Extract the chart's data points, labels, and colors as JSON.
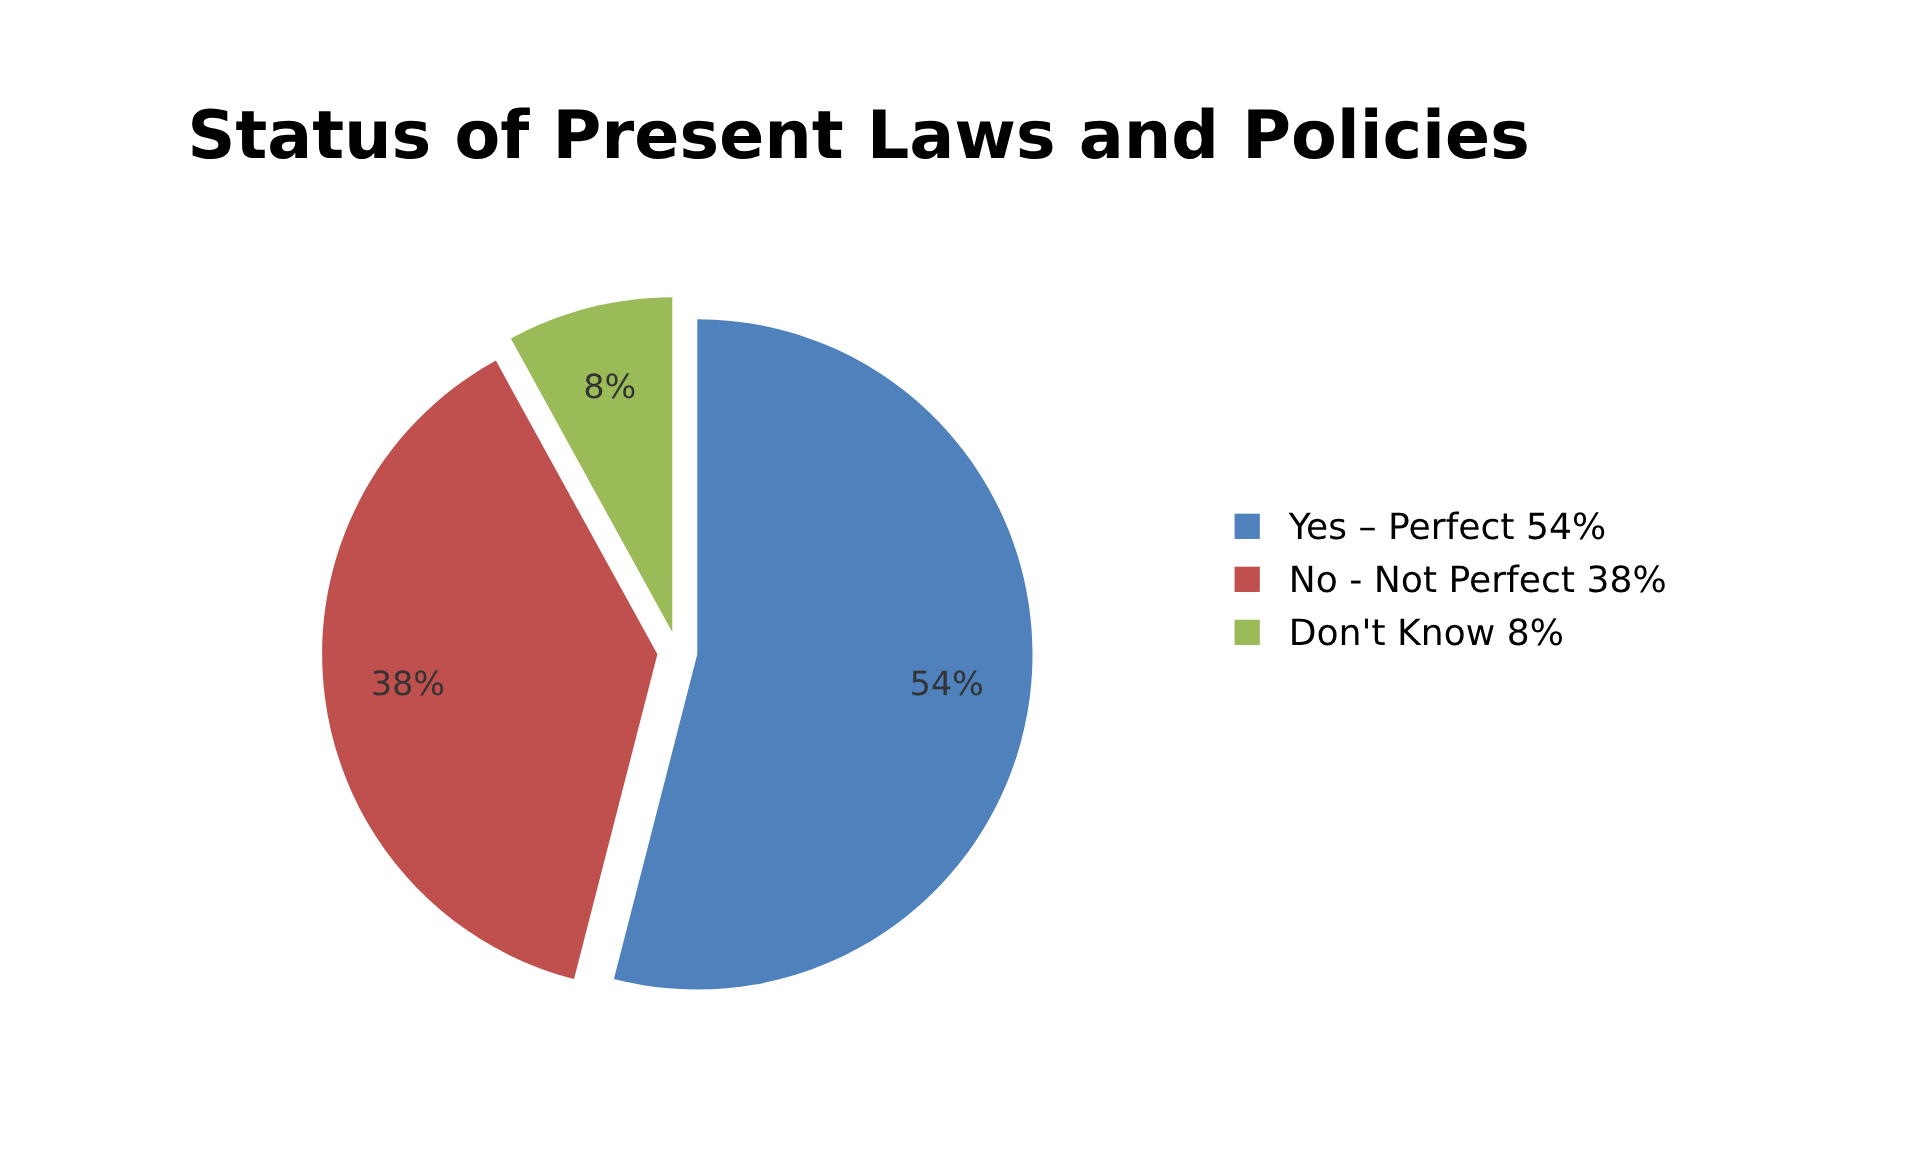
{
  "chart_data": {
    "type": "pie",
    "title": "Status of Present Laws and Policies",
    "categories": [
      "Yes – Perfect 54%",
      "No - Not Perfect 38%",
      "Don't Know 8%"
    ],
    "values": [
      54,
      38,
      8
    ],
    "colors": [
      "#4f81bd",
      "#c0504d",
      "#9bbb59"
    ],
    "value_labels": [
      "54%",
      "38%",
      "8%"
    ],
    "legend": "right"
  }
}
